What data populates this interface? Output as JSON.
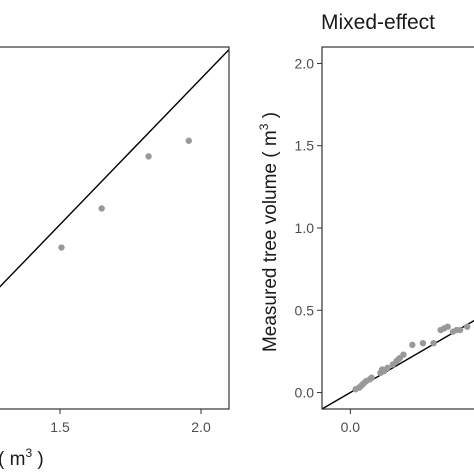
{
  "chart_data": [
    {
      "type": "scatter",
      "title": "",
      "xlabel": "( m³ )",
      "ylabel": "",
      "xlim": [
        1.03,
        2.1
      ],
      "ylim": [
        0.71,
        2.1
      ],
      "x_ticks": [
        "1.5",
        "2.0"
      ],
      "x_tick_values": [
        1.5,
        2.0
      ],
      "y_ticks": [],
      "grid": false,
      "points": [
        {
          "x": 1.35,
          "y": 1.33
        },
        {
          "x": 1.53,
          "y": 1.48
        },
        {
          "x": 1.74,
          "y": 1.68
        },
        {
          "x": 1.92,
          "y": 1.74
        }
      ],
      "reference_line": {
        "x": [
          1.03,
          2.1
        ],
        "y": [
          1.14,
          2.09
        ]
      },
      "point_color": "#999999",
      "line_color": "#000000"
    },
    {
      "type": "scatter",
      "title": "Mixed-effect",
      "xlabel": "",
      "ylabel_main": "Measured tree volume",
      "ylabel_unit": "( m",
      "ylabel_sup": "3",
      "ylabel_close": " )",
      "xlim": [
        -0.16,
        0.8
      ],
      "ylim": [
        -0.1,
        2.1
      ],
      "x_ticks": [
        "0.0"
      ],
      "x_tick_values": [
        0.0
      ],
      "y_ticks": [
        "0.0",
        "0.5",
        "1.0",
        "1.5",
        "2.0"
      ],
      "y_tick_values": [
        0.0,
        0.5,
        1.0,
        1.5,
        2.0
      ],
      "grid": false,
      "points": [
        {
          "x": 0.03,
          "y": 0.02
        },
        {
          "x": 0.05,
          "y": 0.03
        },
        {
          "x": 0.06,
          "y": 0.04
        },
        {
          "x": 0.07,
          "y": 0.05
        },
        {
          "x": 0.08,
          "y": 0.06
        },
        {
          "x": 0.09,
          "y": 0.07
        },
        {
          "x": 0.11,
          "y": 0.08
        },
        {
          "x": 0.12,
          "y": 0.09
        },
        {
          "x": 0.17,
          "y": 0.12
        },
        {
          "x": 0.18,
          "y": 0.14
        },
        {
          "x": 0.19,
          "y": 0.13
        },
        {
          "x": 0.21,
          "y": 0.15
        },
        {
          "x": 0.24,
          "y": 0.17
        },
        {
          "x": 0.26,
          "y": 0.19
        },
        {
          "x": 0.27,
          "y": 0.2
        },
        {
          "x": 0.28,
          "y": 0.21
        },
        {
          "x": 0.3,
          "y": 0.23
        },
        {
          "x": 0.35,
          "y": 0.29
        },
        {
          "x": 0.41,
          "y": 0.3
        },
        {
          "x": 0.47,
          "y": 0.3
        },
        {
          "x": 0.51,
          "y": 0.38
        },
        {
          "x": 0.53,
          "y": 0.39
        },
        {
          "x": 0.55,
          "y": 0.4
        },
        {
          "x": 0.58,
          "y": 0.37
        },
        {
          "x": 0.6,
          "y": 0.38
        },
        {
          "x": 0.62,
          "y": 0.38
        },
        {
          "x": 0.66,
          "y": 0.4
        },
        {
          "x": 0.72,
          "y": 0.39
        }
      ],
      "reference_line": {
        "x": [
          -0.16,
          0.8
        ],
        "y": [
          -0.1,
          0.5
        ]
      },
      "point_color": "#999999",
      "line_color": "#000000"
    }
  ]
}
